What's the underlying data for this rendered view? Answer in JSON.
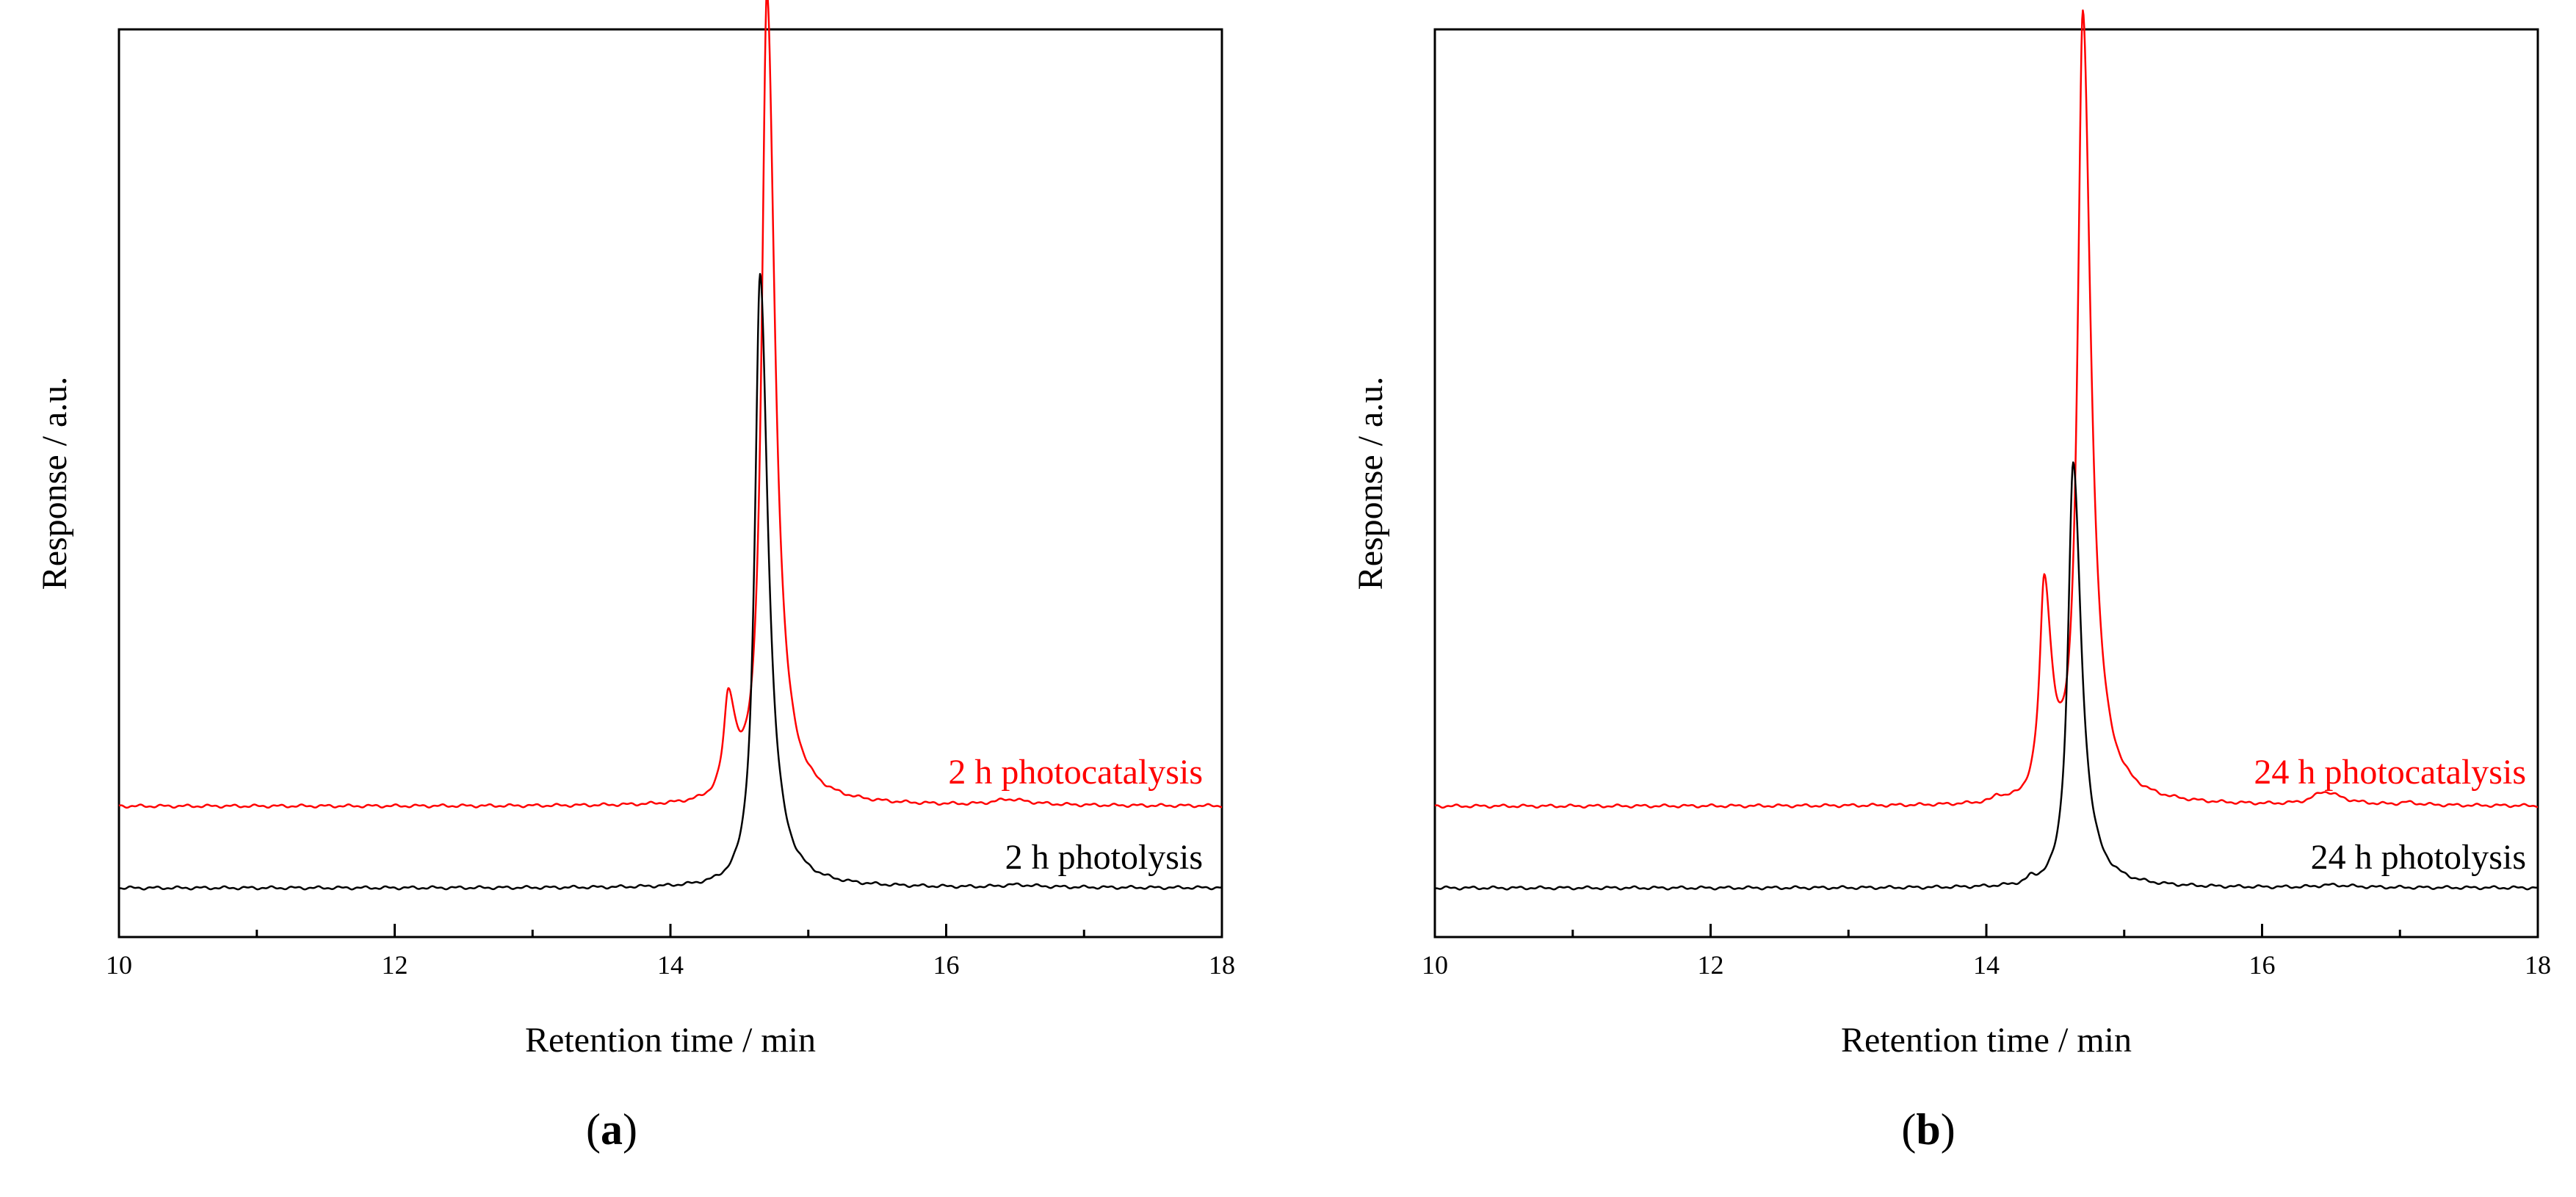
{
  "chart_data": [
    {
      "type": "line",
      "panel_label": "(a)",
      "panel_letter": "a",
      "xlabel": "Retention time / min",
      "ylabel": "Response / a.u.",
      "xlim": [
        10,
        18
      ],
      "ylim": [
        -0.06,
        1.05
      ],
      "xticks": [
        10,
        12,
        14,
        16,
        18
      ],
      "xticklabels": [
        "10",
        "12",
        "14",
        "16",
        "18"
      ],
      "grid": false,
      "series": [
        {
          "name": "2 h photocatalysis",
          "color": "#ff0000",
          "baseline": 0.1,
          "peaks": [
            {
              "rt": 14.42,
              "height": 0.12,
              "width": 0.04
            },
            {
              "rt": 14.7,
              "height": 0.99,
              "width": 0.045
            },
            {
              "rt": 16.45,
              "height": 0.007,
              "width": 0.12
            }
          ]
        },
        {
          "name": "2 h photolysis",
          "color": "#000000",
          "baseline": 0.0,
          "peaks": [
            {
              "rt": 14.65,
              "height": 0.75,
              "width": 0.045
            },
            {
              "rt": 16.5,
              "height": 0.003,
              "width": 0.12
            }
          ]
        }
      ]
    },
    {
      "type": "line",
      "panel_label": "(b)",
      "panel_letter": "b",
      "xlabel": "Retention time / min",
      "ylabel": "Response / a.u.",
      "xlim": [
        10,
        18
      ],
      "ylim": [
        -0.06,
        1.05
      ],
      "xticks": [
        10,
        12,
        14,
        16,
        18
      ],
      "xticklabels": [
        "10",
        "12",
        "14",
        "16",
        "18"
      ],
      "grid": false,
      "series": [
        {
          "name": "24 h photocatalysis",
          "color": "#ff0000",
          "baseline": 0.1,
          "peaks": [
            {
              "rt": 14.08,
              "height": 0.007,
              "width": 0.03
            },
            {
              "rt": 14.42,
              "height": 0.26,
              "width": 0.04
            },
            {
              "rt": 14.7,
              "height": 0.96,
              "width": 0.045
            },
            {
              "rt": 16.45,
              "height": 0.016,
              "width": 0.1
            },
            {
              "rt": 17.05,
              "height": 0.003,
              "width": 0.06
            }
          ]
        },
        {
          "name": "24 h photolysis",
          "color": "#000000",
          "baseline": 0.0,
          "peaks": [
            {
              "rt": 14.32,
              "height": 0.006,
              "width": 0.03
            },
            {
              "rt": 14.63,
              "height": 0.52,
              "width": 0.045
            },
            {
              "rt": 16.5,
              "height": 0.003,
              "width": 0.12
            }
          ]
        }
      ]
    }
  ]
}
